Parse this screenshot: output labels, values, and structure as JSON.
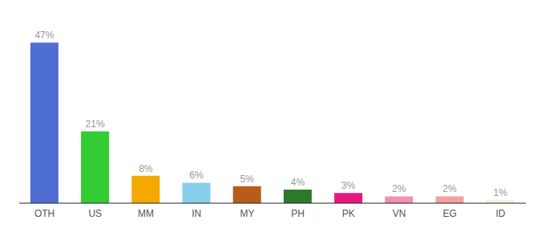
{
  "chart_data": {
    "type": "bar",
    "categories": [
      "OTH",
      "US",
      "MM",
      "IN",
      "MY",
      "PH",
      "PK",
      "VN",
      "EG",
      "ID"
    ],
    "values": [
      47,
      21,
      8,
      6,
      5,
      4,
      3,
      2,
      2,
      1
    ],
    "value_labels": [
      "47%",
      "21%",
      "8%",
      "6%",
      "5%",
      "4%",
      "3%",
      "2%",
      "2%",
      "1%"
    ],
    "colors": [
      "#4f6ed4",
      "#33cc33",
      "#f5a800",
      "#87ceeb",
      "#b85c1a",
      "#2a7a2a",
      "#e8177e",
      "#f48fb1",
      "#f4a0a0",
      "#f5f2dc"
    ],
    "ylim": [
      0,
      52
    ],
    "data_labels": true,
    "tick_labels": "x",
    "grid": false
  }
}
